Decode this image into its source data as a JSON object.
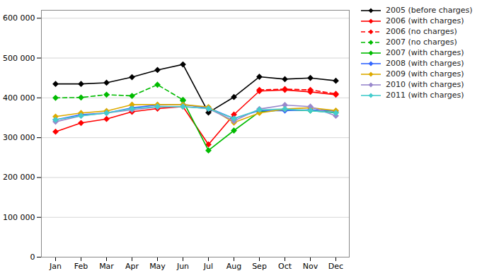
{
  "chart_data": {
    "type": "line",
    "categories": [
      "Jan",
      "Feb",
      "Mar",
      "Apr",
      "May",
      "Jun",
      "Jul",
      "Aug",
      "Sep",
      "Oct",
      "Nov",
      "Dec"
    ],
    "series": [
      {
        "name": "2005 (before charges)",
        "color": "#000000",
        "line_style": "solid",
        "marker": "diamond",
        "values": [
          435000,
          435000,
          438000,
          452000,
          470000,
          484000,
          363000,
          402000,
          453000,
          447000,
          450000,
          443000
        ]
      },
      {
        "name": "2006 (with charges)",
        "color": "#FF0000",
        "line_style": "solid",
        "marker": "diamond",
        "values": [
          315000,
          337000,
          347000,
          365000,
          373000,
          378000,
          283000,
          358000,
          417000,
          420000,
          415000,
          408000
        ]
      },
      {
        "name": "2006 (no charges)",
        "color": "#FF0000",
        "line_style": "dashed",
        "marker": "diamond",
        "values": [
          null,
          null,
          null,
          null,
          null,
          null,
          null,
          null,
          420000,
          422000,
          420000,
          410000
        ]
      },
      {
        "name": "2007 (no charges)",
        "color": "#00BB00",
        "line_style": "dashed",
        "marker": "diamond",
        "values": [
          400000,
          401000,
          408000,
          405000,
          433000,
          395000,
          null,
          null,
          null,
          null,
          null,
          null
        ]
      },
      {
        "name": "2007 (with charges)",
        "color": "#00BB00",
        "line_style": "solid",
        "marker": "diamond",
        "values": [
          null,
          null,
          null,
          null,
          null,
          393000,
          268000,
          318000,
          365000,
          370000,
          368000,
          363000
        ]
      },
      {
        "name": "2008 (with charges)",
        "color": "#3366FF",
        "line_style": "solid",
        "marker": "diamond",
        "values": [
          345000,
          358000,
          362000,
          375000,
          382000,
          383000,
          375000,
          348000,
          368000,
          368000,
          370000,
          367000
        ]
      },
      {
        "name": "2009 (with charges)",
        "color": "#DDAA00",
        "line_style": "solid",
        "marker": "diamond",
        "values": [
          353000,
          362000,
          367000,
          383000,
          383000,
          383000,
          377000,
          338000,
          362000,
          372000,
          375000,
          368000
        ]
      },
      {
        "name": "2010 (with charges)",
        "color": "#9988CC",
        "line_style": "solid",
        "marker": "diamond",
        "values": [
          340000,
          355000,
          362000,
          370000,
          377000,
          378000,
          373000,
          342000,
          372000,
          382000,
          378000,
          355000
        ]
      },
      {
        "name": "2011 (with charges)",
        "color": "#44CCCC",
        "line_style": "solid",
        "marker": "diamond",
        "values": [
          345000,
          355000,
          362000,
          373000,
          378000,
          378000,
          373000,
          348000,
          370000,
          372000,
          368000,
          362000
        ]
      }
    ],
    "ylim": [
      0,
      620000
    ],
    "yticks": [
      0,
      {
        "value": 100000,
        "label": "100 000"
      },
      {
        "value": 200000,
        "label": "200 000"
      },
      {
        "value": 300000,
        "label": "300 000"
      },
      {
        "value": 400000,
        "label": "400 000"
      },
      {
        "value": 500000,
        "label": "500 000"
      },
      {
        "value": 600000,
        "label": "600 000"
      }
    ],
    "grid": true,
    "legend": "upper right"
  }
}
